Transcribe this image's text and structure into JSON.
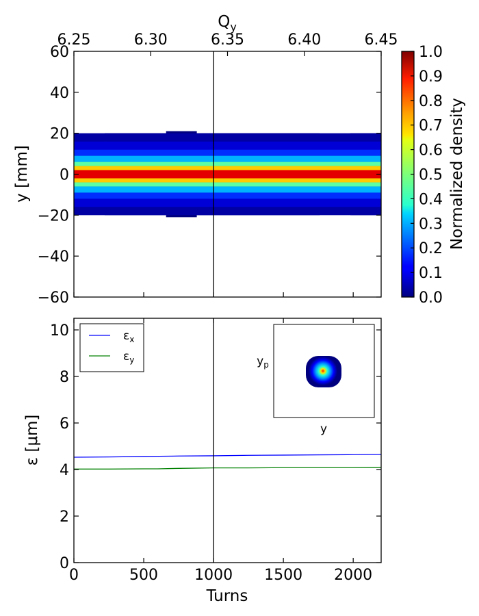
{
  "chart_data": [
    {
      "type": "heatmap",
      "title": "",
      "xlabel": "",
      "ylabel": "y [mm]",
      "top_xlabel_base": "Q",
      "top_xlabel_sub": "y",
      "top_xlim": [
        6.25,
        6.45
      ],
      "top_xticks": [
        "6.25",
        "6.30",
        "6.35",
        "6.40",
        "6.45"
      ],
      "xlim": [
        0,
        2200
      ],
      "ylim": [
        -60,
        60
      ],
      "yticks": [
        60,
        40,
        20,
        0,
        -20,
        -40,
        -60
      ],
      "ytick_labels": [
        "60",
        "40",
        "20",
        "0",
        "−20",
        "−40",
        "−60"
      ],
      "vertical_line_x": 1000,
      "band_half_width_mm": [
        19,
        20,
        20,
        21,
        20,
        20,
        20,
        20,
        19,
        20
      ],
      "density_profile": {
        "y": [
          -20,
          -16,
          -12,
          -9,
          -6,
          -4,
          -2,
          0,
          2,
          4,
          6,
          9,
          12,
          16,
          20
        ],
        "density": [
          0.02,
          0.05,
          0.12,
          0.22,
          0.38,
          0.55,
          0.8,
          1.0,
          0.8,
          0.55,
          0.38,
          0.22,
          0.12,
          0.05,
          0.02
        ]
      },
      "colorbar": {
        "label": "Normalized density",
        "ticks": [
          "0.0",
          "0.1",
          "0.2",
          "0.3",
          "0.4",
          "0.5",
          "0.6",
          "0.7",
          "0.8",
          "0.9",
          "1.0"
        ],
        "colormap": "jet"
      }
    },
    {
      "type": "line",
      "title": "",
      "xlabel": "Turns",
      "ylabel": "ε [μm]",
      "xlim": [
        0,
        2200
      ],
      "ylim": [
        0,
        10.5
      ],
      "xticks": [
        "0",
        "500",
        "1000",
        "1500",
        "2000"
      ],
      "yticks": [
        "0",
        "2",
        "4",
        "6",
        "8",
        "10"
      ],
      "vertical_line_x": 1000,
      "legend_position": "top-left",
      "series": [
        {
          "name_base": "ε",
          "name_sub": "x",
          "color": "#0000ff",
          "x": [
            0,
            250,
            500,
            750,
            1000,
            1250,
            1500,
            1750,
            2000,
            2200
          ],
          "y": [
            4.53,
            4.54,
            4.56,
            4.58,
            4.59,
            4.61,
            4.62,
            4.63,
            4.64,
            4.65
          ]
        },
        {
          "name_base": "ε",
          "name_sub": "y",
          "color": "#008000",
          "x": [
            0,
            250,
            500,
            600,
            750,
            1000,
            1250,
            1500,
            1750,
            2000,
            2200
          ],
          "y": [
            4.02,
            4.02,
            4.03,
            4.03,
            4.05,
            4.07,
            4.07,
            4.08,
            4.08,
            4.08,
            4.09
          ]
        }
      ],
      "inset": {
        "xlabel": "y",
        "ylabel_base": "y",
        "ylabel_sub": "p"
      }
    }
  ]
}
